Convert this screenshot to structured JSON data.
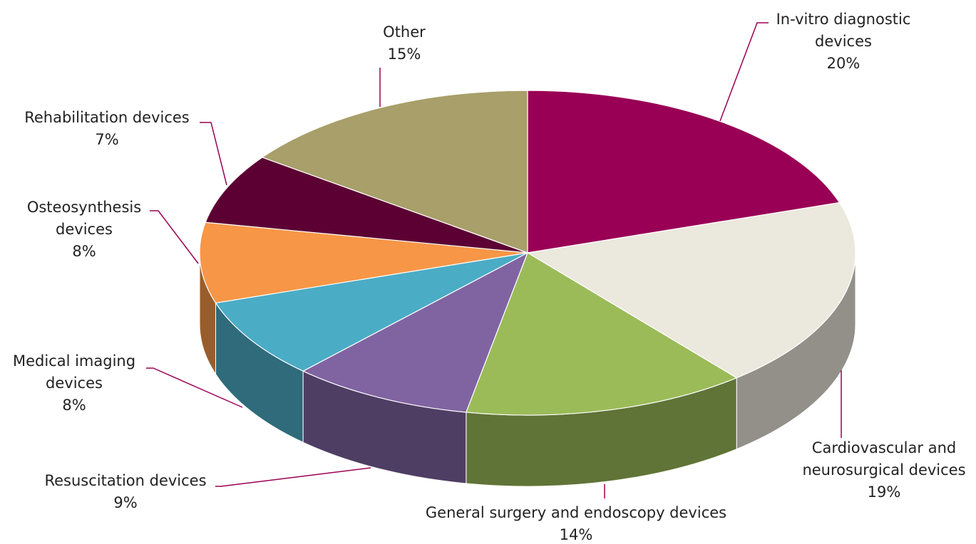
{
  "chart_data": {
    "type": "pie",
    "categories": [
      "In-vitro diagnostic devices",
      "Cardiovascular and neurosurgical devices",
      "General surgery and endoscopy devices",
      "Resuscitation devices",
      "Medical imaging devices",
      "Osteosynthesis devices",
      "Rehabilitation devices",
      "Other"
    ],
    "values": [
      20,
      19,
      14,
      9,
      8,
      8,
      7,
      15
    ],
    "value_labels": [
      "20%",
      "19%",
      "14%",
      "9%",
      "8%",
      "8%",
      "7%",
      "15%"
    ],
    "colors": [
      "#990055",
      "#ebe8dd",
      "#9bbb59",
      "#8064a2",
      "#4bacc6",
      "#f79646",
      "#5c0033",
      "#a89f6a"
    ]
  }
}
